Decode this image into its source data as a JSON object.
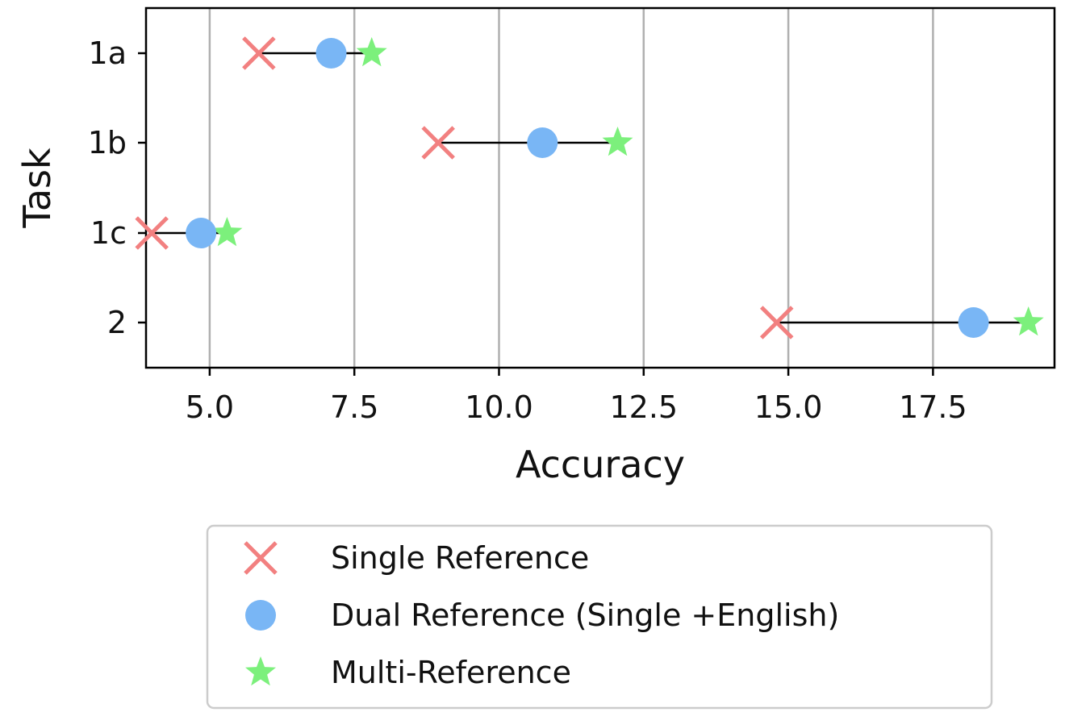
{
  "chart_data": {
    "type": "scatter",
    "title": "",
    "xlabel": "Accuracy",
    "ylabel": "Task",
    "categories": [
      "1a",
      "1b",
      "1c",
      "2"
    ],
    "xlim": [
      3.9,
      19.6
    ],
    "xticks": [
      5.0,
      7.5,
      10.0,
      12.5,
      15.0,
      17.5
    ],
    "xtick_labels": [
      "5.0",
      "7.5",
      "10.0",
      "12.5",
      "15.0",
      "17.5"
    ],
    "grid": "vertical",
    "legend_position": "below",
    "arrows": "from Single Reference to Dual Reference, and from Dual Reference to Multi-Reference",
    "series": [
      {
        "name": "Single Reference",
        "marker": "x",
        "color": "#f28080",
        "values": [
          5.85,
          8.95,
          4.0,
          14.8
        ]
      },
      {
        "name": "Dual Reference (Single +English)",
        "marker": "circle",
        "color": "#79b6f5",
        "values": [
          7.1,
          10.75,
          4.85,
          18.2
        ]
      },
      {
        "name": "Multi-Reference",
        "marker": "star",
        "color": "#7cf07c",
        "values": [
          7.8,
          12.05,
          5.3,
          19.15
        ]
      }
    ]
  }
}
